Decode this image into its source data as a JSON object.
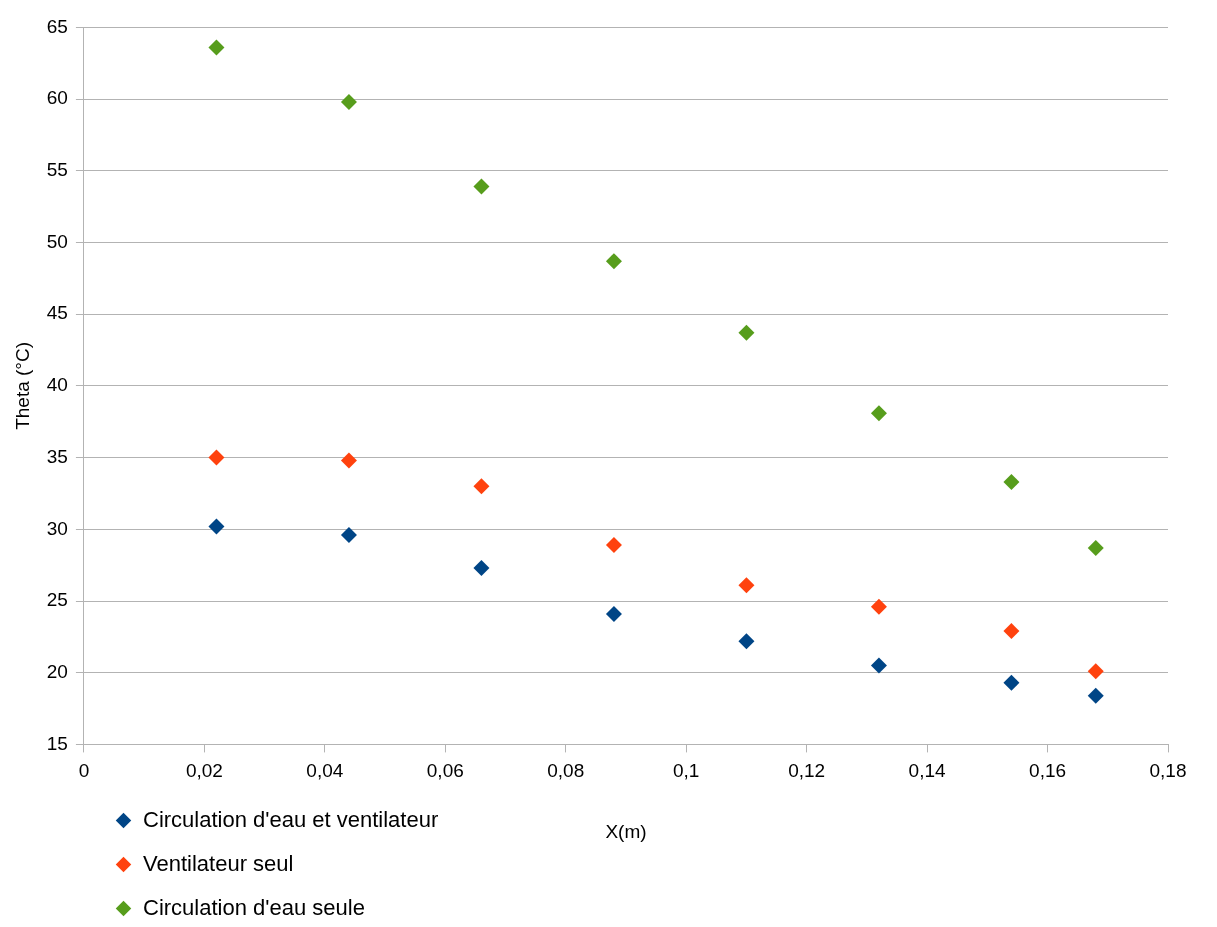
{
  "chart_data": {
    "type": "scatter",
    "xlabel": "X(m)",
    "ylabel": "Theta (°C)",
    "xlim": [
      0,
      0.18
    ],
    "xticks": [
      0,
      {
        "value": 0.02,
        "label": "0,02"
      },
      {
        "value": 0.04,
        "label": "0,04"
      },
      {
        "value": 0.06,
        "label": "0,06"
      },
      {
        "value": 0.08,
        "label": "0,08"
      },
      {
        "value": 0.1,
        "label": "0,1"
      },
      {
        "value": 0.12,
        "label": "0,12"
      },
      {
        "value": 0.14,
        "label": "0,14"
      },
      {
        "value": 0.16,
        "label": "0,16"
      },
      {
        "value": 0.18,
        "label": "0,18"
      }
    ],
    "ylim": [
      15,
      65
    ],
    "yticks": [
      15,
      20,
      25,
      30,
      35,
      40,
      45,
      50,
      55,
      60,
      65
    ],
    "x": [
      0.022,
      0.044,
      0.066,
      0.088,
      0.11,
      0.132,
      0.154,
      0.168
    ],
    "series": [
      {
        "name": "Circulation d'eau et ventilateur",
        "color": "#004586",
        "values": [
          30.2,
          29.6,
          27.3,
          24.1,
          22.2,
          20.5,
          19.3,
          18.4
        ]
      },
      {
        "name": "Ventilateur seul",
        "color": "#ff420e",
        "values": [
          35.0,
          34.8,
          33.0,
          28.9,
          26.1,
          24.6,
          22.9,
          20.1
        ]
      },
      {
        "name": "Circulation d'eau seule",
        "color": "#579d1c",
        "values": [
          63.6,
          59.8,
          53.9,
          48.7,
          43.7,
          38.1,
          33.3,
          28.7
        ]
      }
    ],
    "grid": "y",
    "legend": "bottom left",
    "marker": "diamond"
  }
}
